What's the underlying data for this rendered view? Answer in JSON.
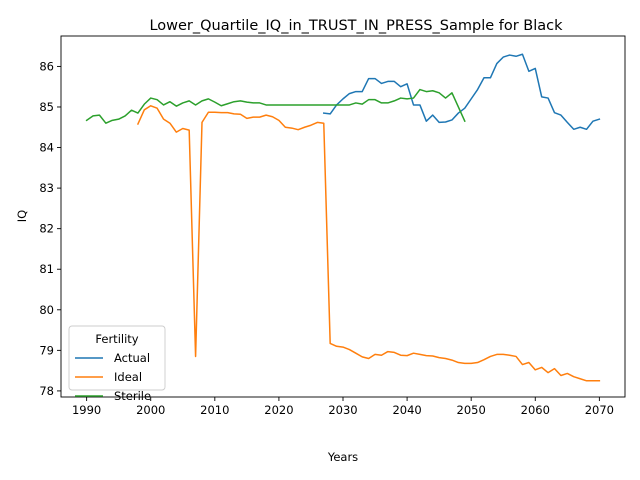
{
  "chart_data": {
    "type": "line",
    "title": "Lower_Quartile_IQ_in_TRUST_IN_PRESS_Sample for Black",
    "xlabel": "Years",
    "ylabel": "IQ",
    "xlim": [
      1986,
      2074
    ],
    "ylim": [
      77.85,
      86.75
    ],
    "xticks": [
      1990,
      2000,
      2010,
      2020,
      2030,
      2040,
      2050,
      2060,
      2070
    ],
    "yticks": [
      78,
      79,
      80,
      81,
      82,
      83,
      84,
      85,
      86
    ],
    "grid": false,
    "legend": {
      "title": "Fertility",
      "placement": "lower-left"
    },
    "series": [
      {
        "name": "Actual",
        "color": "#1f77b4",
        "points": [
          [
            2027,
            84.85
          ],
          [
            2028,
            84.83
          ],
          [
            2029,
            85.05
          ],
          [
            2030,
            85.2
          ],
          [
            2031,
            85.33
          ],
          [
            2032,
            85.38
          ],
          [
            2033,
            85.38
          ],
          [
            2034,
            85.7
          ],
          [
            2035,
            85.7
          ],
          [
            2036,
            85.58
          ],
          [
            2037,
            85.63
          ],
          [
            2038,
            85.63
          ],
          [
            2039,
            85.5
          ],
          [
            2040,
            85.57
          ],
          [
            2041,
            85.05
          ],
          [
            2042,
            85.05
          ],
          [
            2043,
            84.65
          ],
          [
            2044,
            84.8
          ],
          [
            2045,
            84.62
          ],
          [
            2046,
            84.63
          ],
          [
            2047,
            84.68
          ],
          [
            2048,
            84.85
          ],
          [
            2049,
            84.97
          ],
          [
            2050,
            85.2
          ],
          [
            2051,
            85.43
          ],
          [
            2052,
            85.72
          ],
          [
            2053,
            85.72
          ],
          [
            2054,
            86.07
          ],
          [
            2055,
            86.23
          ],
          [
            2056,
            86.28
          ],
          [
            2057,
            86.25
          ],
          [
            2058,
            86.3
          ],
          [
            2059,
            85.88
          ],
          [
            2060,
            85.95
          ],
          [
            2061,
            85.25
          ],
          [
            2062,
            85.22
          ],
          [
            2063,
            84.86
          ],
          [
            2064,
            84.8
          ],
          [
            2065,
            84.62
          ],
          [
            2066,
            84.45
          ],
          [
            2067,
            84.5
          ],
          [
            2068,
            84.45
          ],
          [
            2069,
            84.65
          ],
          [
            2070,
            84.7
          ]
        ]
      },
      {
        "name": "Ideal",
        "color": "#ff7f0e",
        "points": [
          [
            1998,
            84.58
          ],
          [
            1999,
            84.93
          ],
          [
            2000,
            85.03
          ],
          [
            2001,
            84.97
          ],
          [
            2002,
            84.7
          ],
          [
            2003,
            84.6
          ],
          [
            2004,
            84.38
          ],
          [
            2005,
            84.47
          ],
          [
            2006,
            84.43
          ],
          [
            2007,
            78.85
          ],
          [
            2008,
            84.62
          ],
          [
            2009,
            84.87
          ],
          [
            2010,
            84.87
          ],
          [
            2011,
            84.86
          ],
          [
            2012,
            84.86
          ],
          [
            2013,
            84.83
          ],
          [
            2014,
            84.82
          ],
          [
            2015,
            84.72
          ],
          [
            2016,
            84.75
          ],
          [
            2017,
            84.75
          ],
          [
            2018,
            84.8
          ],
          [
            2019,
            84.76
          ],
          [
            2020,
            84.67
          ],
          [
            2021,
            84.5
          ],
          [
            2022,
            84.48
          ],
          [
            2023,
            84.44
          ],
          [
            2024,
            84.5
          ],
          [
            2025,
            84.55
          ],
          [
            2026,
            84.62
          ],
          [
            2027,
            84.6
          ],
          [
            2028,
            79.17
          ],
          [
            2029,
            79.1
          ],
          [
            2030,
            79.08
          ],
          [
            2031,
            79.02
          ],
          [
            2032,
            78.93
          ],
          [
            2033,
            78.84
          ],
          [
            2034,
            78.8
          ],
          [
            2035,
            78.9
          ],
          [
            2036,
            78.88
          ],
          [
            2037,
            78.97
          ],
          [
            2038,
            78.95
          ],
          [
            2039,
            78.88
          ],
          [
            2040,
            78.87
          ],
          [
            2041,
            78.93
          ],
          [
            2042,
            78.9
          ],
          [
            2043,
            78.87
          ],
          [
            2044,
            78.86
          ],
          [
            2045,
            78.82
          ],
          [
            2046,
            78.8
          ],
          [
            2047,
            78.76
          ],
          [
            2048,
            78.7
          ],
          [
            2049,
            78.68
          ],
          [
            2050,
            78.68
          ],
          [
            2051,
            78.7
          ],
          [
            2052,
            78.77
          ],
          [
            2053,
            78.85
          ],
          [
            2054,
            78.9
          ],
          [
            2055,
            78.9
          ],
          [
            2056,
            78.88
          ],
          [
            2057,
            78.85
          ],
          [
            2058,
            78.65
          ],
          [
            2059,
            78.7
          ],
          [
            2060,
            78.52
          ],
          [
            2061,
            78.58
          ],
          [
            2062,
            78.45
          ],
          [
            2063,
            78.55
          ],
          [
            2064,
            78.38
          ],
          [
            2065,
            78.43
          ],
          [
            2066,
            78.35
          ],
          [
            2067,
            78.3
          ],
          [
            2068,
            78.25
          ],
          [
            2069,
            78.25
          ],
          [
            2070,
            78.25
          ]
        ]
      },
      {
        "name": "Sterile",
        "color": "#2ca02c",
        "points": [
          [
            1990,
            84.67
          ],
          [
            1991,
            84.78
          ],
          [
            1992,
            84.8
          ],
          [
            1993,
            84.6
          ],
          [
            1994,
            84.67
          ],
          [
            1995,
            84.7
          ],
          [
            1996,
            84.78
          ],
          [
            1997,
            84.92
          ],
          [
            1998,
            84.85
          ],
          [
            1999,
            85.07
          ],
          [
            2000,
            85.22
          ],
          [
            2001,
            85.18
          ],
          [
            2002,
            85.05
          ],
          [
            2003,
            85.13
          ],
          [
            2004,
            85.02
          ],
          [
            2005,
            85.1
          ],
          [
            2006,
            85.15
          ],
          [
            2007,
            85.05
          ],
          [
            2008,
            85.15
          ],
          [
            2009,
            85.2
          ],
          [
            2010,
            85.12
          ],
          [
            2011,
            85.03
          ],
          [
            2012,
            85.08
          ],
          [
            2013,
            85.13
          ],
          [
            2014,
            85.15
          ],
          [
            2015,
            85.12
          ],
          [
            2016,
            85.1
          ],
          [
            2017,
            85.1
          ],
          [
            2018,
            85.05
          ],
          [
            2019,
            85.05
          ],
          [
            2020,
            85.05
          ],
          [
            2021,
            85.05
          ],
          [
            2022,
            85.05
          ],
          [
            2023,
            85.05
          ],
          [
            2024,
            85.05
          ],
          [
            2025,
            85.05
          ],
          [
            2026,
            85.05
          ],
          [
            2027,
            85.05
          ],
          [
            2028,
            85.05
          ],
          [
            2029,
            85.05
          ],
          [
            2030,
            85.05
          ],
          [
            2031,
            85.05
          ],
          [
            2032,
            85.1
          ],
          [
            2033,
            85.07
          ],
          [
            2034,
            85.18
          ],
          [
            2035,
            85.18
          ],
          [
            2036,
            85.1
          ],
          [
            2037,
            85.1
          ],
          [
            2038,
            85.15
          ],
          [
            2039,
            85.22
          ],
          [
            2040,
            85.2
          ],
          [
            2041,
            85.22
          ],
          [
            2042,
            85.43
          ],
          [
            2043,
            85.38
          ],
          [
            2044,
            85.4
          ],
          [
            2045,
            85.35
          ],
          [
            2046,
            85.22
          ],
          [
            2047,
            85.35
          ],
          [
            2048,
            85.0
          ],
          [
            2049,
            84.65
          ]
        ]
      }
    ]
  }
}
